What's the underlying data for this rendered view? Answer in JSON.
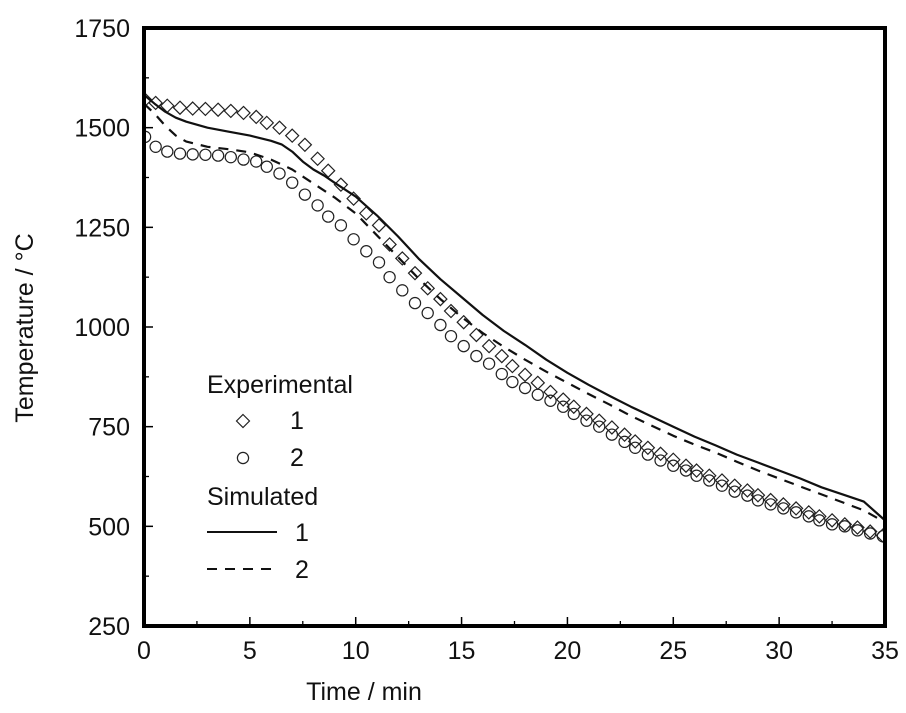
{
  "chart_data": {
    "type": "scatter",
    "title": "",
    "xlabel": "Time / min",
    "ylabel": "Temperature / °C",
    "xlim": [
      0,
      35
    ],
    "ylim": [
      250,
      1750
    ],
    "xticks": [
      0,
      5,
      10,
      15,
      20,
      25,
      30,
      35
    ],
    "xtick_labels": [
      "0",
      "5",
      "10",
      "15",
      "20",
      "25",
      "30",
      "35"
    ],
    "yticks": [
      250,
      500,
      750,
      1000,
      1250,
      1500,
      1750
    ],
    "ytick_labels": [
      "250",
      "500",
      "750",
      "1000",
      "1250",
      "1500",
      "1750"
    ],
    "x_minor_step": 2.5,
    "y_minor_step": 125,
    "grid": false,
    "legend": {
      "placement": "lower-left",
      "groups": [
        {
          "heading": "Experimental",
          "entries": [
            {
              "label": "1",
              "marker": "diamond"
            },
            {
              "label": "2",
              "marker": "circle"
            }
          ]
        },
        {
          "heading": "Simulated",
          "entries": [
            {
              "label": "1",
              "line": "solid"
            },
            {
              "label": "2",
              "line": "dashed"
            }
          ]
        }
      ]
    },
    "series": [
      {
        "name": "Experimental 1",
        "kind": "markers",
        "marker": "diamond",
        "x": [
          0.05,
          0.55,
          1.1,
          1.7,
          2.3,
          2.9,
          3.5,
          4.1,
          4.7,
          5.3,
          5.8,
          6.4,
          7.0,
          7.6,
          8.2,
          8.7,
          9.3,
          9.9,
          10.5,
          11.1,
          11.6,
          12.2,
          12.8,
          13.4,
          14.0,
          14.5,
          15.1,
          15.7,
          16.3,
          16.9,
          17.4,
          18.0,
          18.6,
          19.2,
          19.8,
          20.3,
          20.9,
          21.5,
          22.1,
          22.7,
          23.2,
          23.8,
          24.4,
          25.0,
          25.6,
          26.1,
          26.7,
          27.3,
          27.9,
          28.5,
          29.0,
          29.6,
          30.2,
          30.8,
          31.4,
          31.9,
          32.5,
          33.1,
          33.7,
          34.3,
          34.9
        ],
        "y": [
          1570,
          1562,
          1555,
          1550,
          1548,
          1547,
          1545,
          1542,
          1537,
          1527,
          1512,
          1500,
          1480,
          1457,
          1422,
          1392,
          1357,
          1322,
          1285,
          1255,
          1207,
          1172,
          1135,
          1097,
          1070,
          1040,
          1012,
          980,
          952,
          927,
          902,
          880,
          860,
          837,
          818,
          800,
          782,
          765,
          748,
          730,
          713,
          697,
          682,
          667,
          652,
          640,
          627,
          615,
          602,
          590,
          578,
          566,
          555,
          545,
          535,
          525,
          515,
          505,
          497,
          487,
          477
        ]
      },
      {
        "name": "Experimental 2",
        "kind": "markers",
        "marker": "circle",
        "x": [
          0.05,
          0.55,
          1.1,
          1.7,
          2.3,
          2.9,
          3.5,
          4.1,
          4.7,
          5.3,
          5.8,
          6.4,
          7.0,
          7.6,
          8.2,
          8.7,
          9.3,
          9.9,
          10.5,
          11.1,
          11.6,
          12.2,
          12.8,
          13.4,
          14.0,
          14.5,
          15.1,
          15.7,
          16.3,
          16.9,
          17.4,
          18.0,
          18.6,
          19.2,
          19.8,
          20.3,
          20.9,
          21.5,
          22.1,
          22.7,
          23.2,
          23.8,
          24.4,
          25.0,
          25.6,
          26.1,
          26.7,
          27.3,
          27.9,
          28.5,
          29.0,
          29.6,
          30.2,
          30.8,
          31.4,
          31.9,
          32.5,
          33.1,
          33.7,
          34.3,
          34.9
        ],
        "y": [
          1477,
          1452,
          1440,
          1435,
          1433,
          1432,
          1430,
          1426,
          1420,
          1415,
          1402,
          1385,
          1362,
          1332,
          1305,
          1277,
          1255,
          1220,
          1190,
          1162,
          1125,
          1092,
          1060,
          1035,
          1005,
          977,
          952,
          927,
          908,
          882,
          862,
          847,
          830,
          815,
          800,
          782,
          765,
          750,
          730,
          712,
          697,
          680,
          665,
          652,
          640,
          627,
          615,
          602,
          587,
          577,
          565,
          555,
          545,
          535,
          525,
          515,
          505,
          500,
          490,
          482,
          475
        ]
      },
      {
        "name": "Simulated 1",
        "kind": "line",
        "style": "solid",
        "x": [
          0,
          0.5,
          1.0,
          1.5,
          2.0,
          3.0,
          4.0,
          5.0,
          6.0,
          6.5,
          7.0,
          7.5,
          8.0,
          8.5,
          9.0,
          10.0,
          11.0,
          12.0,
          13.0,
          14.0,
          15.0,
          16.0,
          17.0,
          18.0,
          19.0,
          20.0,
          21.0,
          22.0,
          23.0,
          24.0,
          25.0,
          26.0,
          27.0,
          28.0,
          29.0,
          30.0,
          31.0,
          32.0,
          33.0,
          34.0,
          35.0
        ],
        "y": [
          1582,
          1560,
          1540,
          1525,
          1515,
          1500,
          1490,
          1480,
          1467,
          1458,
          1440,
          1415,
          1395,
          1380,
          1362,
          1327,
          1280,
          1227,
          1170,
          1120,
          1075,
          1030,
          990,
          955,
          918,
          885,
          855,
          827,
          800,
          775,
          750,
          725,
          703,
          680,
          660,
          640,
          620,
          598,
          580,
          562,
          515
        ]
      },
      {
        "name": "Simulated 2",
        "kind": "line",
        "style": "dashed",
        "x": [
          0,
          0.5,
          1.0,
          1.5,
          2.0,
          3.0,
          4.0,
          5.0,
          6.0,
          7.0,
          8.0,
          9.0,
          10.0,
          11.0,
          12.0,
          13.0,
          14.0,
          15.0,
          16.0,
          17.0,
          18.0,
          19.0,
          20.0,
          21.0,
          22.0,
          23.0,
          24.0,
          25.0,
          26.0,
          27.0,
          28.0,
          29.0,
          30.0,
          31.0,
          32.0,
          33.0,
          34.0,
          35.0
        ],
        "y": [
          1560,
          1535,
          1505,
          1480,
          1465,
          1452,
          1446,
          1438,
          1420,
          1395,
          1360,
          1325,
          1285,
          1230,
          1175,
          1120,
          1070,
          1025,
          985,
          950,
          918,
          888,
          860,
          832,
          805,
          777,
          752,
          727,
          705,
          685,
          662,
          640,
          620,
          600,
          580,
          560,
          540,
          510
        ]
      }
    ]
  }
}
